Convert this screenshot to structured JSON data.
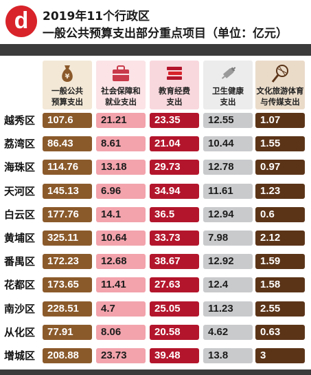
{
  "header": {
    "logo_text": "d",
    "title_line1": "2019年11个行政区",
    "title_line2": "一般公共预算支出部分重点项目（单位：亿元）"
  },
  "chart_data": {
    "type": "table",
    "unit": "亿元",
    "columns": [
      {
        "name": "一般公共\n预算支出",
        "icon": "money-bag-icon",
        "color": "#8b5a2b",
        "bg": "#f3e8d6",
        "text_color": "#ffffff"
      },
      {
        "name": "社会保障和\n就业支出",
        "icon": "briefcase-icon",
        "color": "#f2a3ac",
        "bg": "#fbe3e6",
        "text_color": "#1c1c1c"
      },
      {
        "name": "教育经费\n支出",
        "icon": "books-icon",
        "color": "#b3162c",
        "bg": "#f8d8dd",
        "text_color": "#ffffff"
      },
      {
        "name": "卫生健康\n支出",
        "icon": "syringe-icon",
        "color": "#c9cacc",
        "bg": "#ececec",
        "text_color": "#1c1c1c"
      },
      {
        "name": "文化旅游体育\n与传媒支出",
        "icon": "racket-icon",
        "color": "#5b3418",
        "bg": "#eadbc9",
        "text_color": "#ffffff"
      }
    ],
    "rows": [
      {
        "district": "越秀区",
        "values": [
          "107.6",
          "21.21",
          "23.35",
          "12.55",
          "1.07"
        ]
      },
      {
        "district": "荔湾区",
        "values": [
          "86.43",
          "8.61",
          "21.04",
          "10.44",
          "1.55"
        ]
      },
      {
        "district": "海珠区",
        "values": [
          "114.76",
          "13.18",
          "29.73",
          "12.78",
          "0.97"
        ]
      },
      {
        "district": "天河区",
        "values": [
          "145.13",
          "6.96",
          "34.94",
          "11.61",
          "1.23"
        ]
      },
      {
        "district": "白云区",
        "values": [
          "177.76",
          "14.1",
          "36.5",
          "12.94",
          "0.6"
        ]
      },
      {
        "district": "黄埔区",
        "values": [
          "325.11",
          "10.64",
          "33.73",
          "7.98",
          "2.12"
        ]
      },
      {
        "district": "番禺区",
        "values": [
          "172.23",
          "12.68",
          "38.67",
          "12.92",
          "1.59"
        ]
      },
      {
        "district": "花都区",
        "values": [
          "173.65",
          "11.41",
          "27.63",
          "12.4",
          "1.58"
        ]
      },
      {
        "district": "南沙区",
        "values": [
          "228.51",
          "4.7",
          "25.05",
          "11.23",
          "2.55"
        ]
      },
      {
        "district": "从化区",
        "values": [
          "77.91",
          "8.06",
          "20.58",
          "4.62",
          "0.63"
        ]
      },
      {
        "district": "增城区",
        "values": [
          "208.88",
          "23.73",
          "39.48",
          "13.8",
          "3"
        ]
      }
    ]
  }
}
